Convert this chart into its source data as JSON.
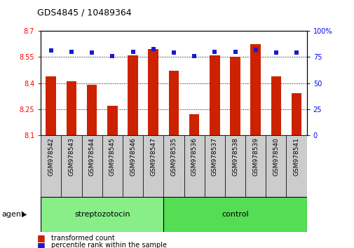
{
  "title": "GDS4845 / 10489364",
  "samples": [
    "GSM978542",
    "GSM978543",
    "GSM978544",
    "GSM978545",
    "GSM978546",
    "GSM978547",
    "GSM978535",
    "GSM978536",
    "GSM978537",
    "GSM978538",
    "GSM978539",
    "GSM978540",
    "GSM978541"
  ],
  "red_values": [
    8.44,
    8.41,
    8.39,
    8.27,
    8.56,
    8.595,
    8.47,
    8.22,
    8.56,
    8.55,
    8.625,
    8.44,
    8.34
  ],
  "blue_values": [
    81,
    80,
    79,
    76,
    80,
    83,
    79,
    76,
    80,
    80,
    82,
    79,
    79
  ],
  "group_labels": [
    "streptozotocin",
    "control"
  ],
  "group_sizes": [
    6,
    7
  ],
  "ylim_left": [
    8.1,
    8.7
  ],
  "ylim_right": [
    0,
    100
  ],
  "yticks_left": [
    8.1,
    8.25,
    8.4,
    8.55,
    8.7
  ],
  "yticks_right": [
    0,
    25,
    50,
    75,
    100
  ],
  "grid_values": [
    8.25,
    8.4,
    8.55
  ],
  "bar_color": "#cc2200",
  "dot_color": "#1a1acc",
  "group_bg_color1": "#88ee88",
  "group_bg_color2": "#55dd55",
  "tick_bg_color": "#cccccc",
  "bar_bottom": 8.1,
  "agent_label": "agent",
  "legend_items": [
    "transformed count",
    "percentile rank within the sample"
  ]
}
